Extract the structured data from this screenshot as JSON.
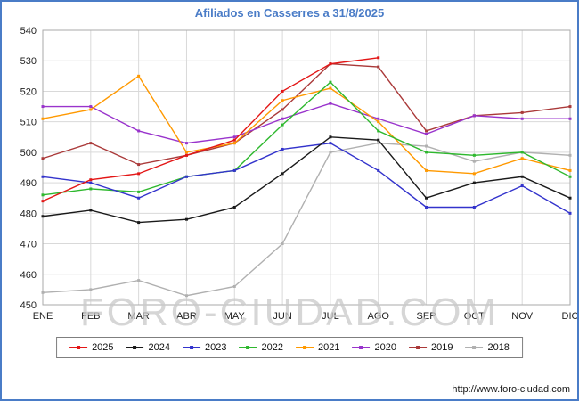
{
  "title": "Afiliados en Casserres a 31/8/2025",
  "watermark": "FORO-CIUDAD.COM",
  "footer_url": "http://www.foro-ciudad.com",
  "colors": {
    "accent": "#4a7cc7",
    "grid": "#d9d9d9",
    "plot_border": "#aaaaaa",
    "axis_text": "#222222",
    "watermark": "#c9c9c9"
  },
  "chart_data": {
    "type": "line",
    "title": "Afiliados en Casserres a 31/8/2025",
    "xlabel": "",
    "ylabel": "",
    "ylim": [
      450,
      540
    ],
    "ytick_step": 10,
    "grid": true,
    "legend_position": "bottom",
    "categories": [
      "ENE",
      "FEB",
      "MAR",
      "ABR",
      "MAY",
      "JUN",
      "JUL",
      "AGO",
      "SEP",
      "OCT",
      "NOV",
      "DIC"
    ],
    "series": [
      {
        "name": "2025",
        "color": "#e31616",
        "values": [
          484,
          491,
          493,
          499,
          504,
          520,
          529,
          531,
          null,
          null,
          null,
          null
        ]
      },
      {
        "name": "2024",
        "color": "#1a1a1a",
        "values": [
          479,
          481,
          477,
          478,
          482,
          493,
          505,
          504,
          485,
          490,
          492,
          485
        ]
      },
      {
        "name": "2023",
        "color": "#3333cc",
        "values": [
          492,
          490,
          485,
          492,
          494,
          501,
          503,
          494,
          482,
          482,
          489,
          480
        ]
      },
      {
        "name": "2022",
        "color": "#2eb82e",
        "values": [
          486,
          488,
          487,
          492,
          494,
          509,
          523,
          507,
          500,
          499,
          500,
          492
        ]
      },
      {
        "name": "2021",
        "color": "#ff9900",
        "values": [
          511,
          514,
          525,
          500,
          503,
          517,
          521,
          510,
          494,
          493,
          498,
          494
        ]
      },
      {
        "name": "2020",
        "color": "#9933cc",
        "values": [
          515,
          515,
          507,
          503,
          505,
          511,
          516,
          511,
          506,
          512,
          511,
          511
        ]
      },
      {
        "name": "2019",
        "color": "#aa3939",
        "values": [
          498,
          503,
          496,
          499,
          503,
          514,
          529,
          528,
          507,
          512,
          513,
          515
        ]
      },
      {
        "name": "2018",
        "color": "#b0b0b0",
        "values": [
          454,
          455,
          458,
          453,
          456,
          470,
          500,
          503,
          502,
          497,
          500,
          499
        ]
      }
    ]
  }
}
